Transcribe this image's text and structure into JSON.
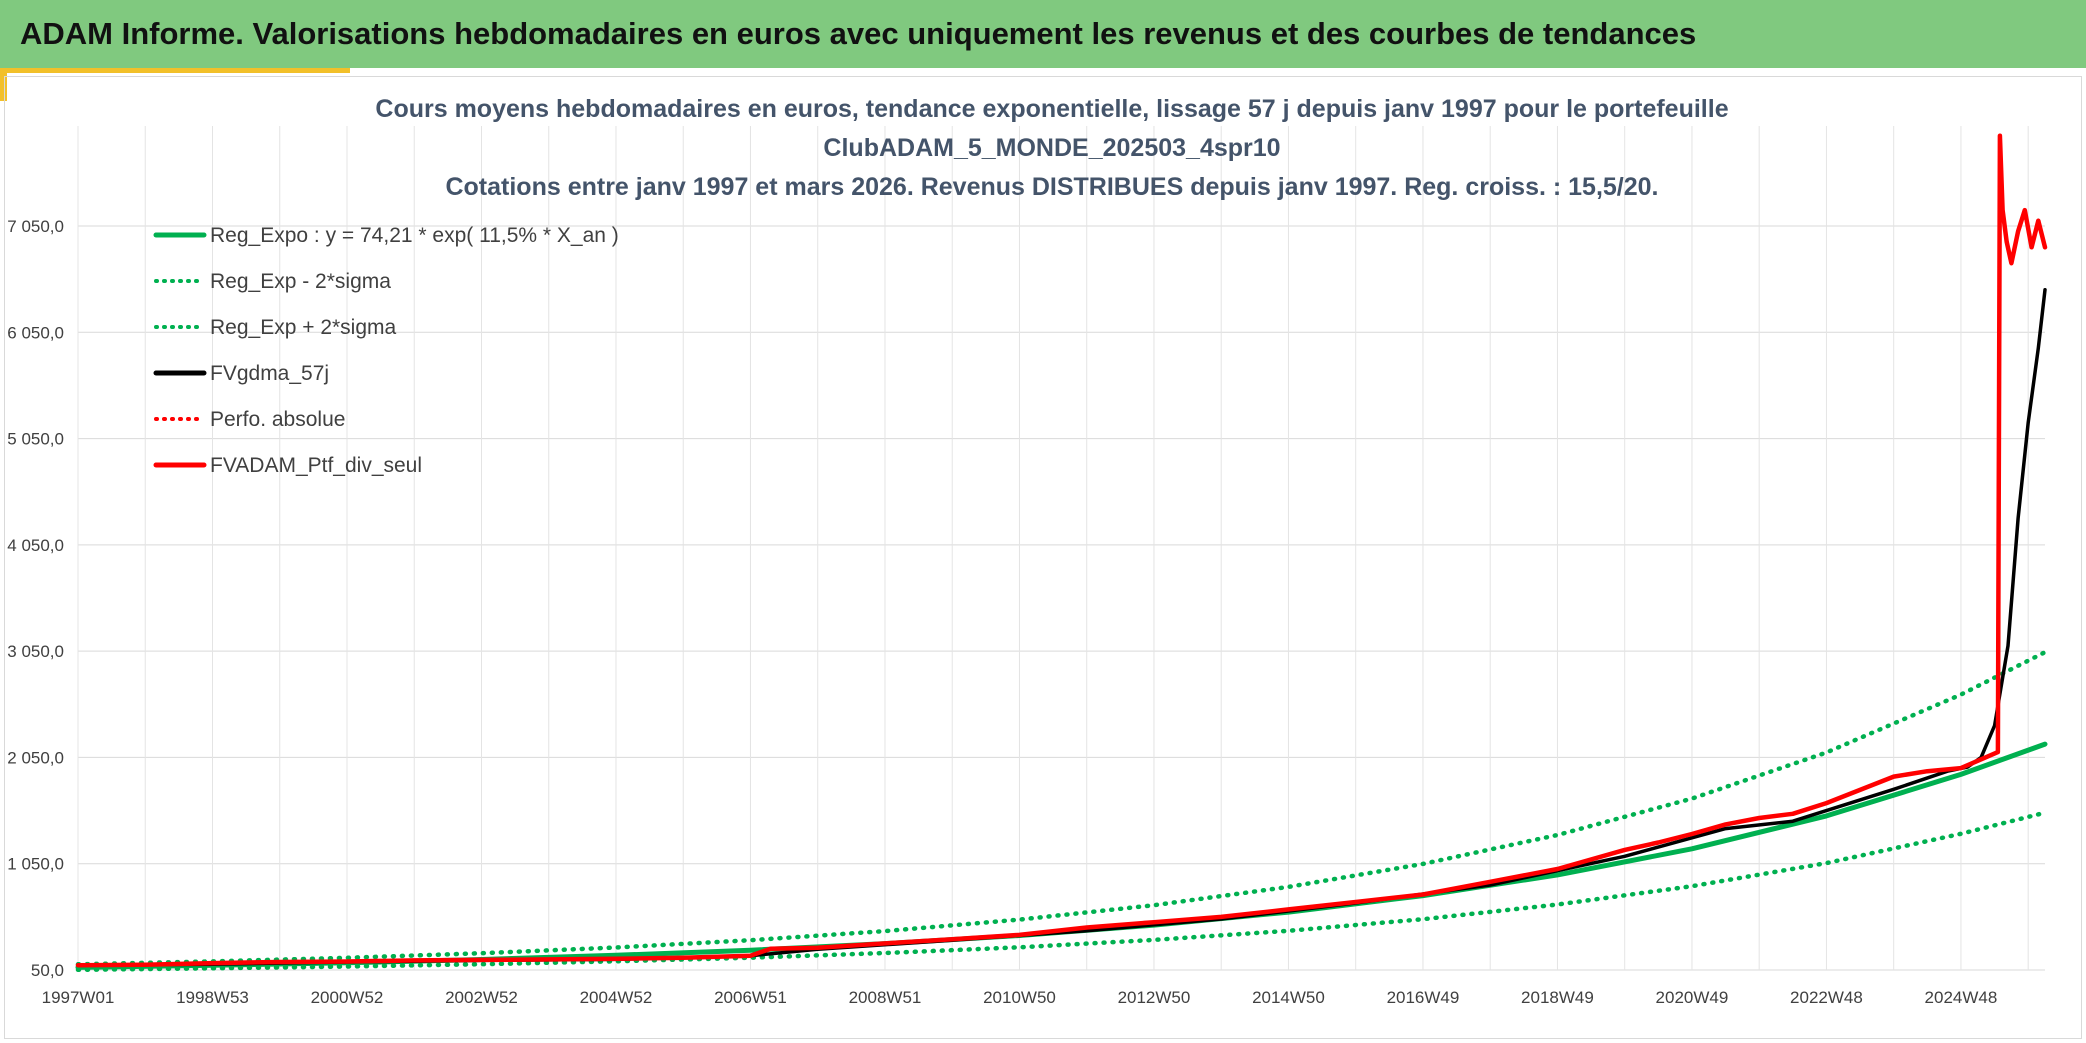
{
  "header": {
    "title": "ADAM Informe. Valorisations hebdomadaires en euros avec uniquement les revenus et des courbes de tendances"
  },
  "chart_data": {
    "type": "line",
    "title_lines": [
      "Cours moyens hebdomadaires en euros, tendance exponentielle, lissage 57 j depuis janv 1997 pour le portefeuille",
      "ClubADAM_5_MONDE_202503_4spr10",
      "Cotations entre janv 1997 et mars 2026. Revenus DISTRIBUES depuis janv 1997. Reg. croiss. : 15,5/20."
    ],
    "xlabel": "",
    "ylabel": "",
    "x_ticks": [
      "1997W01",
      "1998W53",
      "2000W52",
      "2002W52",
      "2004W52",
      "2006W51",
      "2008W51",
      "2010W50",
      "2012W50",
      "2014W50",
      "2016W49",
      "2018W49",
      "2020W49",
      "2022W48",
      "2024W48"
    ],
    "y_ticks": [
      "50,0",
      "1 050,0",
      "2 050,0",
      "3 050,0",
      "4 050,0",
      "5 050,0",
      "6 050,0",
      "7 050,0"
    ],
    "ylim": [
      50,
      8000
    ],
    "xlim_years": [
      1997.0,
      2026.25
    ],
    "grid": true,
    "legend_position": "top-left",
    "colors": {
      "green": "#00b050",
      "black": "#000000",
      "red": "#ff0000",
      "title": "#44546a",
      "banner": "#80c97f",
      "accent": "#f2c02a"
    },
    "legend": [
      {
        "label": "Reg_Expo : y = 74,21 * exp( 11,5% *  X_an )",
        "color": "#00b050",
        "style": "solid"
      },
      {
        "label": "Reg_Exp - 2*sigma",
        "color": "#00b050",
        "style": "dotted"
      },
      {
        "label": "Reg_Exp + 2*sigma",
        "color": "#00b050",
        "style": "dotted"
      },
      {
        "label": "FVgdma_57j",
        "color": "#000000",
        "style": "solid"
      },
      {
        "label": "Perfo. absolue",
        "color": "#ff0000",
        "style": "dotted"
      },
      {
        "label": "FVADAM_Ptf_div_seul",
        "color": "#ff0000",
        "style": "solid"
      }
    ],
    "series": [
      {
        "name": "Reg_Expo : y = 74,21 * exp( 11,5% *  X_an )",
        "color": "#00b050",
        "style": "solid",
        "x": [
          1997.0,
          1999.0,
          2001.0,
          2003.0,
          2005.0,
          2007.0,
          2009.0,
          2011.0,
          2013.0,
          2015.0,
          2017.0,
          2019.0,
          2021.0,
          2023.0,
          2025.0,
          2026.25
        ],
        "y": [
          74,
          94,
          118,
          149,
          188,
          236,
          298,
          375,
          472,
          595,
          750,
          945,
          1190,
          1500,
          1890,
          2175
        ]
      },
      {
        "name": "Reg_Exp - 2*sigma",
        "color": "#00b050",
        "style": "dotted",
        "x": [
          1997.0,
          1999.0,
          2001.0,
          2003.0,
          2005.0,
          2007.0,
          2009.0,
          2011.0,
          2013.0,
          2015.0,
          2017.0,
          2019.0,
          2021.0,
          2023.0,
          2025.0,
          2026.25
        ],
        "y": [
          52,
          66,
          83,
          105,
          132,
          166,
          210,
          264,
          333,
          419,
          528,
          666,
          838,
          1056,
          1331,
          1530
        ]
      },
      {
        "name": "Reg_Exp + 2*sigma",
        "color": "#00b050",
        "style": "dotted",
        "x": [
          1997.0,
          1999.0,
          2001.0,
          2003.0,
          2005.0,
          2007.0,
          2009.0,
          2011.0,
          2013.0,
          2015.0,
          2017.0,
          2019.0,
          2021.0,
          2023.0,
          2025.0,
          2026.25
        ],
        "y": [
          104,
          131,
          165,
          208,
          262,
          330,
          416,
          524,
          660,
          832,
          1048,
          1320,
          1663,
          2096,
          2641,
          3040
        ]
      },
      {
        "name": "FVgdma_57j",
        "color": "#000000",
        "style": "solid",
        "x": [
          1997.0,
          1999.0,
          2001.0,
          2003.0,
          2005.0,
          2007.0,
          2008.0,
          2010.0,
          2012.0,
          2014.0,
          2016.0,
          2018.0,
          2020.0,
          2021.5,
          2022.5,
          2024.0,
          2024.8,
          2025.1,
          2025.3,
          2025.5,
          2025.7,
          2025.85,
          2026.0,
          2026.15,
          2026.25
        ],
        "y": [
          95,
          105,
          125,
          140,
          150,
          185,
          245,
          330,
          420,
          530,
          680,
          850,
          1120,
          1380,
          1450,
          1750,
          1920,
          1960,
          2050,
          2350,
          3100,
          4300,
          5200,
          5900,
          6450
        ]
      },
      {
        "name": "FVADAM_Ptf_div_seul",
        "color": "#ff0000",
        "style": "solid",
        "x": [
          1997.0,
          1998.0,
          1999.0,
          2000.0,
          2001.0,
          2002.0,
          2003.0,
          2004.0,
          2005.0,
          2006.0,
          2007.0,
          2007.3,
          2008.0,
          2009.0,
          2010.0,
          2011.0,
          2012.0,
          2013.0,
          2014.0,
          2015.0,
          2016.0,
          2017.0,
          2018.0,
          2019.0,
          2020.0,
          2020.5,
          2021.0,
          2021.5,
          2022.0,
          2022.5,
          2023.0,
          2024.0,
          2024.5,
          2025.0,
          2025.55,
          2025.58,
          2025.62,
          2025.68,
          2025.75,
          2025.85,
          2025.95,
          2026.05,
          2026.15,
          2026.25
        ],
        "y": [
          95,
          100,
          115,
          125,
          130,
          140,
          145,
          150,
          155,
          165,
          185,
          250,
          260,
          300,
          340,
          380,
          450,
          500,
          550,
          620,
          690,
          760,
          880,
          1000,
          1180,
          1250,
          1330,
          1420,
          1480,
          1520,
          1620,
          1870,
          1920,
          1950,
          2100,
          7900,
          7200,
          6900,
          6700,
          7000,
          7200,
          6850,
          7100,
          6850
        ]
      }
    ]
  }
}
